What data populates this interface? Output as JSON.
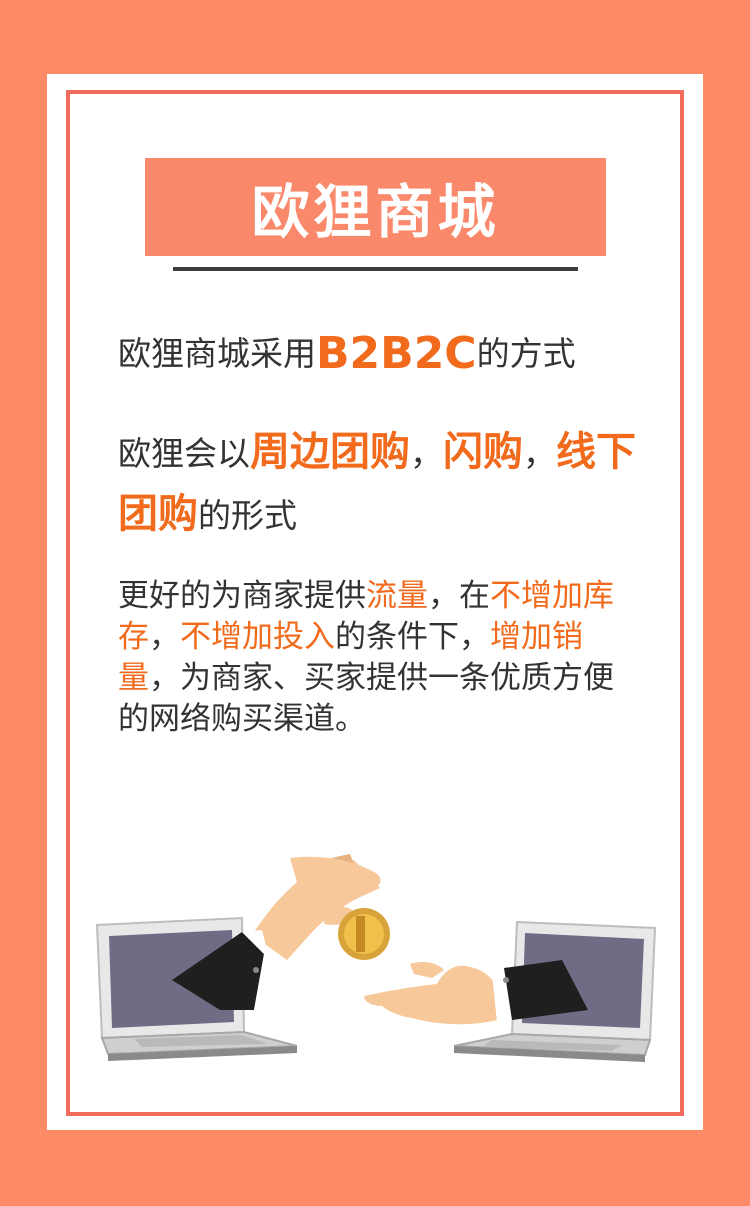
{
  "title": "欧狸商城",
  "para1": {
    "before": "欧狸商城采用",
    "highlight": "B2B2C",
    "after": "的方式"
  },
  "para2": {
    "before": "欧狸会以",
    "hl1": "周边团购",
    "sep1": "，",
    "hl2": "闪购",
    "sep2": "，",
    "hl3": "线下团购",
    "after": "的形式"
  },
  "para3": {
    "t1": "更好的为商家提供",
    "h1": "流量",
    "t2": "，在",
    "h2": "不增加库存",
    "t3": "，",
    "h3": "不增加投入",
    "t4": "的条件下，",
    "h4": "增加销量",
    "t5": "，为商家、买家提供一条优质方便的网络购买渠道。"
  },
  "colors": {
    "background": "#FF8A66",
    "frame": "#F26D5E",
    "title_box": "#F9896A",
    "highlight": "#F26B1D"
  },
  "illustration": {
    "icons": [
      "laptop-icon",
      "hand-with-coin-icon",
      "coin-icon",
      "receiving-hand-icon"
    ]
  }
}
